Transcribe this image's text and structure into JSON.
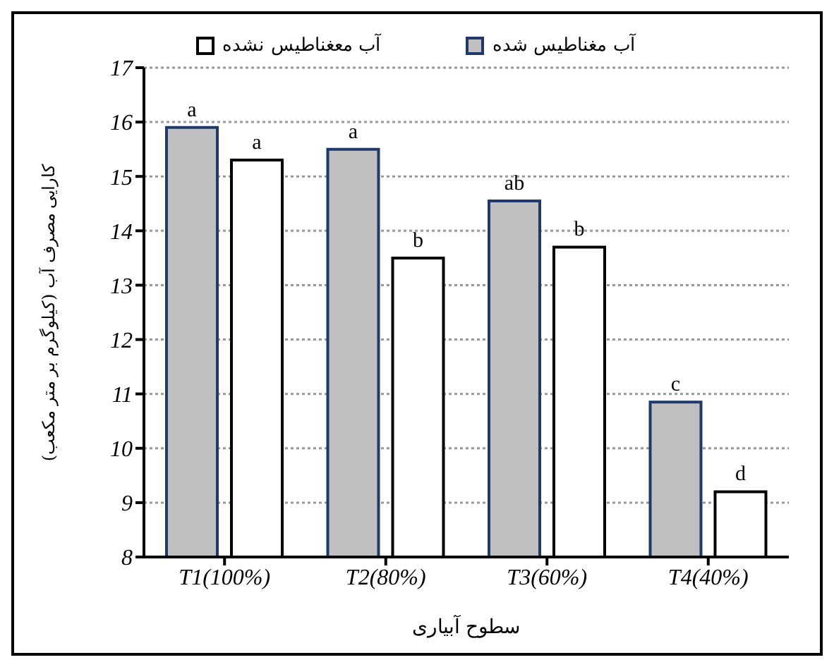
{
  "chart_data": {
    "type": "bar",
    "xlabel": "سطوح آبیاری",
    "ylabel": "کارایی مصرف آب (کیلوگرم بر متر مکعب)",
    "categories": [
      "T1(100%)",
      "T2(80%)",
      "T3(60%)",
      "T4(40%)"
    ],
    "series": [
      {
        "name": "آب مغناطیس شده",
        "color": "#c0c0c0",
        "values": [
          15.9,
          15.5,
          14.55,
          10.85
        ]
      },
      {
        "name": "آب معغناطیس نشده",
        "color": "#ffffff",
        "values": [
          15.3,
          13.5,
          13.7,
          9.2
        ]
      }
    ],
    "ylim": [
      8,
      17
    ],
    "yticks": [
      8,
      9,
      10,
      11,
      12,
      13,
      14,
      15,
      16,
      17
    ],
    "grid": "y",
    "legend": "top",
    "annotations": [
      "a",
      "a",
      "ab",
      "c",
      "a",
      "b",
      "b",
      "d"
    ]
  }
}
